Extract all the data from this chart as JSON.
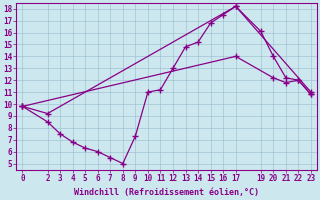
{
  "xlabel": "Windchill (Refroidissement éolien,°C)",
  "ylabel": "",
  "bg_color": "#cce8ee",
  "line_color": "#880088",
  "grid_color": "#99bbcc",
  "axis_color": "#880088",
  "xlim": [
    -0.5,
    23.5
  ],
  "ylim": [
    4.5,
    18.5
  ],
  "xticks": [
    0,
    2,
    3,
    4,
    5,
    6,
    7,
    8,
    9,
    10,
    11,
    12,
    13,
    14,
    15,
    16,
    17,
    19,
    20,
    21,
    22,
    23
  ],
  "yticks": [
    5,
    6,
    7,
    8,
    9,
    10,
    11,
    12,
    13,
    14,
    15,
    16,
    17,
    18
  ],
  "line1_x": [
    0,
    2,
    3,
    4,
    5,
    6,
    7,
    8,
    9,
    10,
    11,
    12,
    13,
    14,
    15,
    16,
    17,
    19,
    20,
    21,
    22,
    23
  ],
  "line1_y": [
    9.8,
    8.5,
    7.5,
    6.8,
    6.3,
    6.0,
    5.5,
    5.0,
    7.3,
    11.0,
    11.2,
    13.0,
    14.8,
    15.2,
    16.8,
    17.5,
    18.2,
    16.1,
    14.0,
    12.2,
    12.0,
    10.8
  ],
  "line2_x": [
    0,
    17,
    20,
    21,
    22,
    23
  ],
  "line2_y": [
    9.8,
    14.0,
    12.2,
    11.8,
    12.0,
    10.8
  ],
  "line3_x": [
    0,
    2,
    17,
    23
  ],
  "line3_y": [
    9.8,
    9.2,
    18.2,
    11.0
  ],
  "marker": "+",
  "markersize": 4,
  "linewidth": 0.9,
  "tick_fontsize": 5.5,
  "label_fontsize": 6.0
}
